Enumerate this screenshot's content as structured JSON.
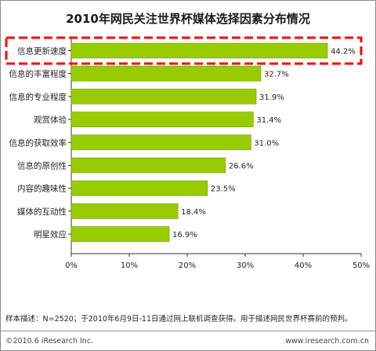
{
  "title": "2010年网民关注世界杯媒体选择因素分布情况",
  "note": "样本描述：N=2520；于2010年6月9日-11日通过网上联机调查获得。用于描述网民世界杯赛前的预判。",
  "copyright": "©2010.6 iResearch Inc.",
  "website": "www.iresearch.com.cn",
  "colors": {
    "bar": "#99cc00",
    "bar_edge": "#6f9a00",
    "highlight": "#ff0000"
  },
  "chart_data": {
    "type": "bar",
    "orientation": "horizontal",
    "categories": [
      "信息更新速度",
      "信息的丰富程度",
      "信息的专业程度",
      "观赏体验",
      "信息的获取效率",
      "信息的原创性",
      "内容的趣味性",
      "媒体的互动性",
      "明星效应"
    ],
    "values": [
      44.2,
      32.7,
      31.9,
      31.4,
      31.0,
      26.6,
      23.5,
      18.4,
      16.9
    ],
    "value_labels": [
      "44.2%",
      "32.7%",
      "31.9%",
      "31.4%",
      "31.0%",
      "26.6%",
      "23.5%",
      "18.4%",
      "16.9%"
    ],
    "xlim": [
      0,
      50
    ],
    "xticks": [
      0,
      10,
      20,
      30,
      40,
      50
    ],
    "xtick_labels": [
      "0%",
      "10%",
      "20%",
      "30%",
      "40%",
      "50%"
    ],
    "highlighted_category": "信息更新速度"
  }
}
